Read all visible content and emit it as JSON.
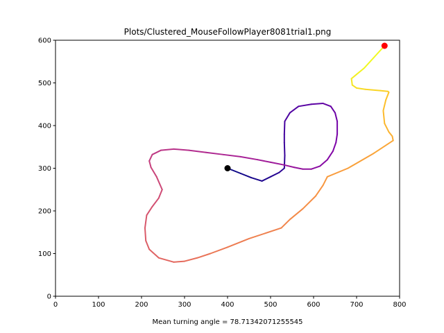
{
  "chart_data": {
    "type": "line",
    "title": "Plots/Clustered_MouseFollowPlayer8081trial1.png",
    "xlabel": "Mean turning angle = 78.71342071255545",
    "ylabel": "",
    "xlim": [
      0,
      800
    ],
    "ylim": [
      0,
      600
    ],
    "xticks": [
      "0",
      "100",
      "200",
      "300",
      "400",
      "500",
      "600",
      "700",
      "800"
    ],
    "yticks": [
      "0",
      "100",
      "200",
      "300",
      "400",
      "500",
      "600"
    ],
    "grid": false,
    "colormap": "plasma",
    "path_color_start": "#0d0887",
    "path_color_end": "#f0f921",
    "start_marker": {
      "x": 400,
      "y": 300,
      "color": "#000000"
    },
    "end_marker": {
      "x": 765,
      "y": 587,
      "color": "#ff0000"
    },
    "x": [
      400,
      430,
      455,
      480,
      500,
      520,
      532,
      533,
      532,
      532,
      533,
      545,
      565,
      595,
      622,
      640,
      650,
      655,
      655,
      652,
      645,
      632,
      615,
      595,
      575,
      555,
      530,
      500,
      470,
      430,
      390,
      350,
      310,
      275,
      245,
      225,
      218,
      222,
      235,
      248,
      240,
      225,
      212,
      208,
      210,
      218,
      240,
      275,
      300,
      330,
      360,
      400,
      450,
      525,
      545,
      575,
      605,
      622,
      632,
      680,
      740,
      785,
      783,
      775,
      765,
      762,
      768,
      775,
      773,
      755,
      720,
      700,
      690,
      688,
      700,
      718,
      765
    ],
    "y": [
      300,
      288,
      278,
      270,
      280,
      290,
      300,
      330,
      360,
      380,
      410,
      430,
      445,
      450,
      452,
      445,
      430,
      410,
      380,
      360,
      340,
      320,
      305,
      298,
      298,
      302,
      308,
      314,
      320,
      327,
      332,
      337,
      342,
      345,
      342,
      332,
      317,
      302,
      280,
      250,
      230,
      210,
      190,
      160,
      130,
      110,
      90,
      80,
      82,
      90,
      100,
      115,
      135,
      160,
      180,
      205,
      235,
      260,
      280,
      300,
      335,
      365,
      375,
      385,
      405,
      435,
      460,
      478,
      480,
      482,
      485,
      488,
      495,
      510,
      520,
      535,
      587
    ]
  }
}
